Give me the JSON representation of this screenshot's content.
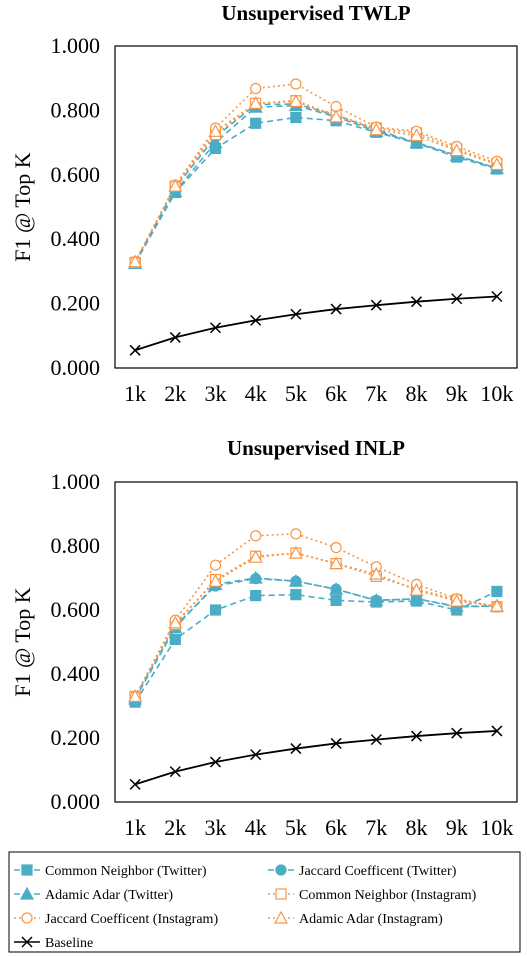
{
  "colors": {
    "blue": "#4BACC6",
    "orange": "#F79646",
    "black": "#000000"
  },
  "legend": [
    {
      "name": "Common Neighbor (Twitter)",
      "color": "#4BACC6",
      "dash": "6,4",
      "marker": "square",
      "fill": true
    },
    {
      "name": "Jaccard Coefficent (Twitter)",
      "color": "#4BACC6",
      "dash": "6,4",
      "marker": "circle",
      "fill": true
    },
    {
      "name": "Adamic Adar (Twitter)",
      "color": "#4BACC6",
      "dash": "6,4",
      "marker": "triangle",
      "fill": true
    },
    {
      "name": "Common Neighbor (Instagram)",
      "color": "#F79646",
      "dash": "2,3",
      "marker": "square",
      "fill": false
    },
    {
      "name": "Jaccard Coefficent (Instagram)",
      "color": "#F79646",
      "dash": "2,3",
      "marker": "circle",
      "fill": false
    },
    {
      "name": "Adamic Adar (Instagram)",
      "color": "#F79646",
      "dash": "2,3",
      "marker": "triangle",
      "fill": false
    },
    {
      "name": "Baseline",
      "color": "#000000",
      "dash": "",
      "marker": "x",
      "fill": false
    }
  ],
  "chart_data": [
    {
      "type": "line",
      "title": "Unsupervised TWLP",
      "ylabel": "F1 @ Top K",
      "xlabel": "",
      "categories": [
        "1k",
        "2k",
        "3k",
        "4k",
        "5k",
        "6k",
        "7k",
        "8k",
        "9k",
        "10k"
      ],
      "ylim": [
        0,
        1
      ],
      "yticks": [
        "0.000",
        "0.200",
        "0.400",
        "0.600",
        "0.800",
        "1.000"
      ],
      "grid": false,
      "series": [
        {
          "name": "Common Neighbor (Twitter)",
          "values": [
            0.325,
            0.545,
            0.682,
            0.76,
            0.778,
            0.768,
            0.732,
            0.698,
            0.655,
            0.618
          ]
        },
        {
          "name": "Jaccard Coefficent (Twitter)",
          "values": [
            0.328,
            0.56,
            0.718,
            0.818,
            0.82,
            0.785,
            0.74,
            0.7,
            0.66,
            0.62
          ]
        },
        {
          "name": "Adamic Adar (Twitter)",
          "values": [
            0.325,
            0.548,
            0.7,
            0.81,
            0.815,
            0.78,
            0.735,
            0.7,
            0.66,
            0.62
          ]
        },
        {
          "name": "Common Neighbor (Instagram)",
          "values": [
            0.328,
            0.565,
            0.725,
            0.822,
            0.83,
            0.785,
            0.745,
            0.73,
            0.68,
            0.635
          ]
        },
        {
          "name": "Jaccard Coefficent (Instagram)",
          "values": [
            0.33,
            0.568,
            0.745,
            0.868,
            0.882,
            0.812,
            0.748,
            0.735,
            0.688,
            0.642
          ]
        },
        {
          "name": "Adamic Adar (Instagram)",
          "values": [
            0.33,
            0.565,
            0.735,
            0.822,
            0.828,
            0.78,
            0.74,
            0.722,
            0.675,
            0.632
          ]
        },
        {
          "name": "Baseline",
          "values": [
            0.055,
            0.095,
            0.125,
            0.148,
            0.167,
            0.183,
            0.195,
            0.206,
            0.215,
            0.222
          ]
        }
      ]
    },
    {
      "type": "line",
      "title": "Unsupervised INLP",
      "ylabel": "F1 @ Top K",
      "xlabel": "",
      "categories": [
        "1k",
        "2k",
        "3k",
        "4k",
        "5k",
        "6k",
        "7k",
        "8k",
        "9k",
        "10k"
      ],
      "ylim": [
        0,
        1
      ],
      "yticks": [
        "0.000",
        "0.200",
        "0.400",
        "0.600",
        "0.800",
        "1.000"
      ],
      "grid": false,
      "series": [
        {
          "name": "Common Neighbor (Twitter)",
          "values": [
            0.312,
            0.508,
            0.6,
            0.645,
            0.648,
            0.63,
            0.625,
            0.628,
            0.6,
            0.658
          ]
        },
        {
          "name": "Jaccard Coefficent (Twitter)",
          "values": [
            0.328,
            0.55,
            0.675,
            0.698,
            0.69,
            0.665,
            0.63,
            0.635,
            0.61,
            0.612
          ]
        },
        {
          "name": "Adamic Adar (Twitter)",
          "values": [
            0.322,
            0.545,
            0.68,
            0.7,
            0.69,
            0.665,
            0.63,
            0.635,
            0.612,
            0.612
          ]
        },
        {
          "name": "Common Neighbor (Instagram)",
          "values": [
            0.33,
            0.555,
            0.695,
            0.768,
            0.778,
            0.745,
            0.705,
            0.665,
            0.632,
            0.61
          ]
        },
        {
          "name": "Jaccard Coefficent (Instagram)",
          "values": [
            0.33,
            0.568,
            0.74,
            0.832,
            0.838,
            0.795,
            0.735,
            0.68,
            0.635,
            0.61
          ]
        },
        {
          "name": "Adamic Adar (Instagram)",
          "values": [
            0.33,
            0.56,
            0.69,
            0.765,
            0.778,
            0.745,
            0.712,
            0.662,
            0.628,
            0.612
          ]
        },
        {
          "name": "Baseline",
          "values": [
            0.055,
            0.095,
            0.125,
            0.148,
            0.167,
            0.183,
            0.195,
            0.206,
            0.215,
            0.222
          ]
        }
      ]
    }
  ]
}
